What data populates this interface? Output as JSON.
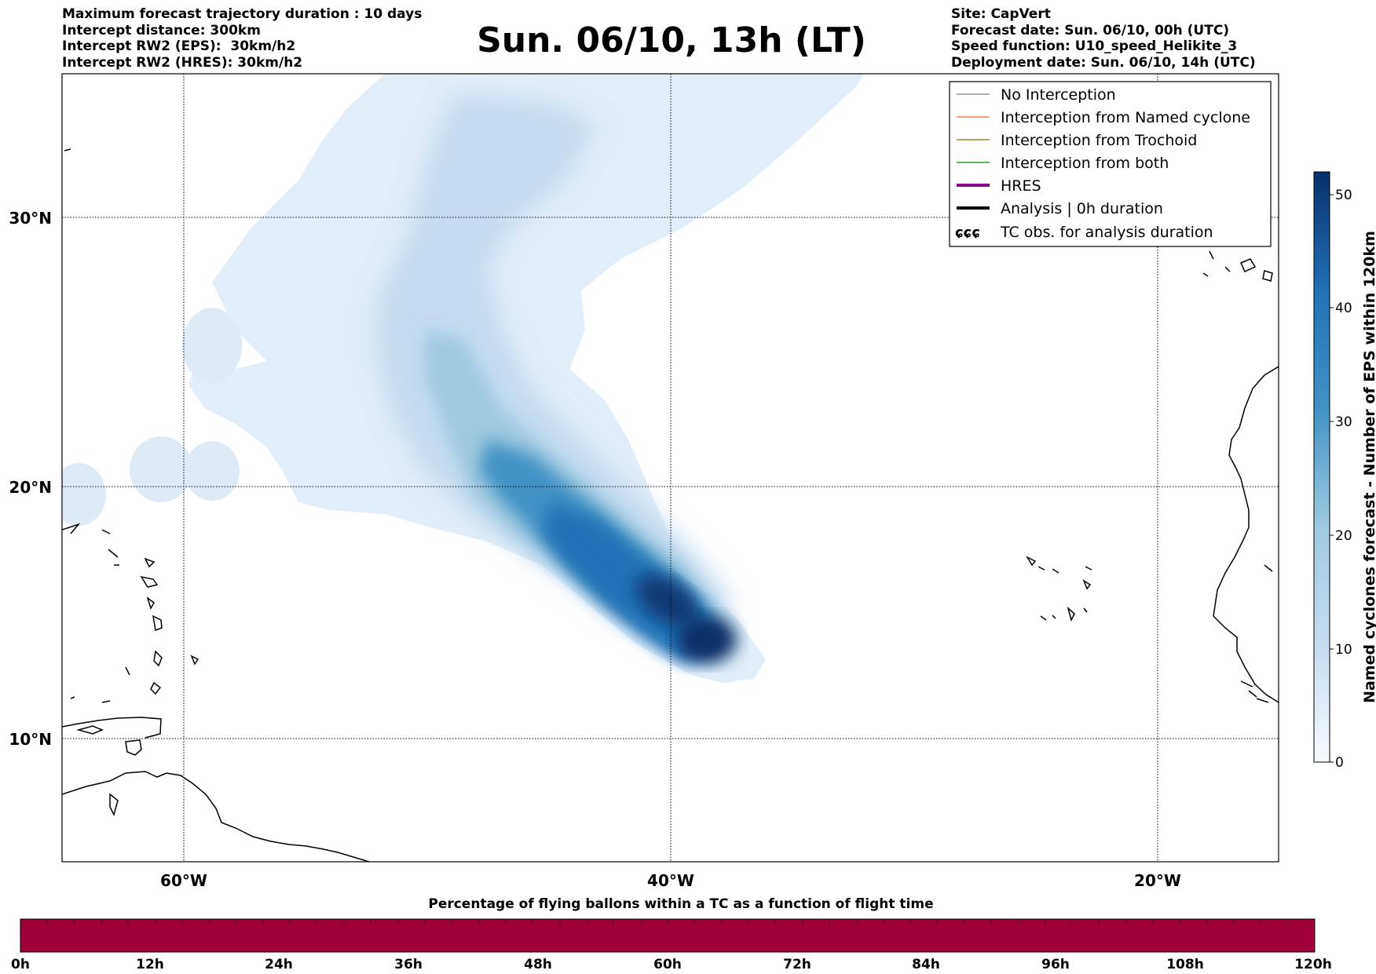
{
  "header": {
    "left_lines": [
      "Maximum forecast trajectory duration : 10 days",
      "Intercept distance: 300km",
      "Intercept RW2 (EPS):  30km/h2",
      "Intercept RW2 (HRES): 30km/h2"
    ],
    "title": "Sun. 06/10, 13h (LT)",
    "right_lines": [
      "Site: CapVert",
      "Forecast date: Sun. 06/10, 00h (UTC)",
      "Speed function: U10_speed_Helikite_3",
      "Deployment date: Sun. 06/10, 14h (UTC)"
    ]
  },
  "map": {
    "lon_labels": [
      "60°W",
      "40°W",
      "20°W"
    ],
    "lat_labels": [
      "30°N",
      "20°N",
      "10°N"
    ],
    "legend": [
      {
        "label": "No Interception",
        "color": "#808080",
        "style": "thin"
      },
      {
        "label": "Interception from Named cyclone",
        "color": "#ff7f50",
        "style": "thin"
      },
      {
        "label": "Interception from Trochoid",
        "color": "#9a8a2a",
        "style": "thin"
      },
      {
        "label": "Interception from both",
        "color": "#2ca02c",
        "style": "thin"
      },
      {
        "label": "HRES",
        "color": "#8b008b",
        "style": "thick"
      },
      {
        "label": "Analysis | 0h duration",
        "color": "#000000",
        "style": "thick"
      },
      {
        "label": "TC obs. for analysis duration",
        "color": "#000000",
        "style": "symbol"
      }
    ],
    "tc_symbol": "ɕɕɕ",
    "colors": {
      "frame": "#000000",
      "track_dark": "#08306b",
      "track_light": "#deebf7",
      "coast": "#000000"
    }
  },
  "colorbar": {
    "label": "Named cyclones forecast - Number of EPS within 120km",
    "ticks": [
      "0",
      "10",
      "20",
      "30",
      "40",
      "50"
    ]
  },
  "timebar": {
    "title": "Percentage of flying ballons within a TC as a function of flight time",
    "labels": [
      "0h",
      "12h",
      "24h",
      "36h",
      "48h",
      "60h",
      "72h",
      "84h",
      "96h",
      "108h",
      "120h"
    ],
    "fill_color": "#a0003a"
  }
}
